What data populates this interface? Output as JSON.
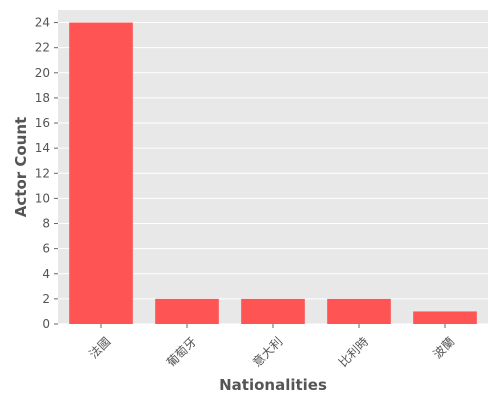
{
  "chart_data": {
    "type": "bar",
    "title": "",
    "xlabel": "Nationalities",
    "ylabel": "Actor Count",
    "categories": [
      "法國",
      "葡萄牙",
      "意大利",
      "比利時",
      "波蘭"
    ],
    "values": [
      24,
      2,
      2,
      2,
      1
    ],
    "ylim": [
      0,
      25
    ],
    "yticks": [
      0,
      2,
      4,
      6,
      8,
      10,
      12,
      14,
      16,
      18,
      20,
      22,
      24
    ],
    "grid": true,
    "legend": "none",
    "bar_color": "#ff5454",
    "plot_background": "#e8e8e8",
    "grid_color": "#ffffff",
    "text_color": "#555555"
  }
}
